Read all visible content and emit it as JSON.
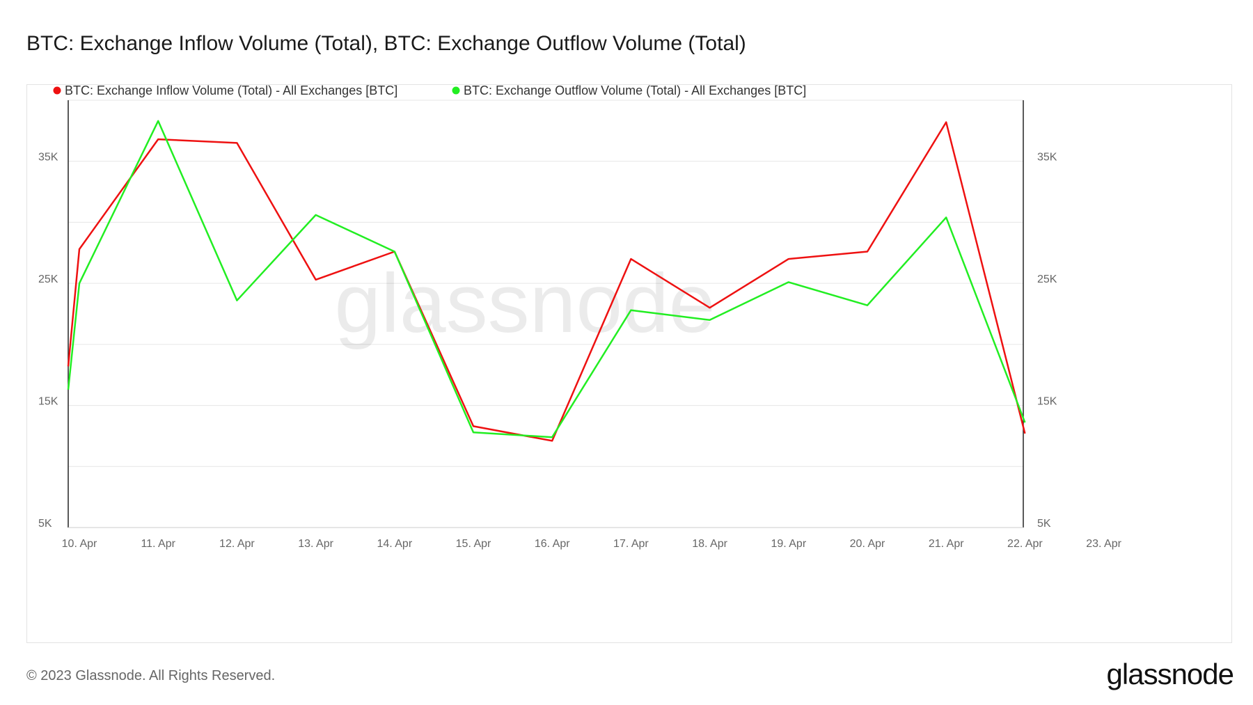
{
  "title": "BTC: Exchange Inflow Volume (Total), BTC: Exchange Outflow Volume (Total)",
  "footer": "© 2023 Glassnode. All Rights Reserved.",
  "brand": "glassnode",
  "watermark": "glassnode",
  "chart_data": {
    "type": "line",
    "x": [
      "10. Apr",
      "11. Apr",
      "12. Apr",
      "13. Apr",
      "14. Apr",
      "15. Apr",
      "16. Apr",
      "17. Apr",
      "18. Apr",
      "19. Apr",
      "20. Apr",
      "21. Apr",
      "22. Apr",
      "23. Apr"
    ],
    "series": [
      {
        "name": "BTC: Exchange Inflow Volume (Total) - All Exchanges [BTC]",
        "color": "#ee1111",
        "start_value": 18200,
        "values": [
          27800,
          36800,
          36500,
          25300,
          27600,
          13300,
          12100,
          27000,
          23000,
          27000,
          27600,
          38200,
          12700,
          null
        ]
      },
      {
        "name": "BTC: Exchange Outflow Volume (Total) - All Exchanges [BTC]",
        "color": "#22ee22",
        "start_value": 16300,
        "values": [
          25000,
          38300,
          23600,
          30600,
          27600,
          12800,
          12400,
          22800,
          22000,
          25100,
          23200,
          30400,
          13600,
          null
        ]
      }
    ],
    "y_ticks": [
      "5K",
      "15K",
      "25K",
      "35K"
    ],
    "y_tick_values": [
      5000,
      15000,
      25000,
      35000
    ],
    "ylim": [
      5000,
      40000
    ],
    "grid": true,
    "legend": "top-left",
    "dual_axis": true
  }
}
